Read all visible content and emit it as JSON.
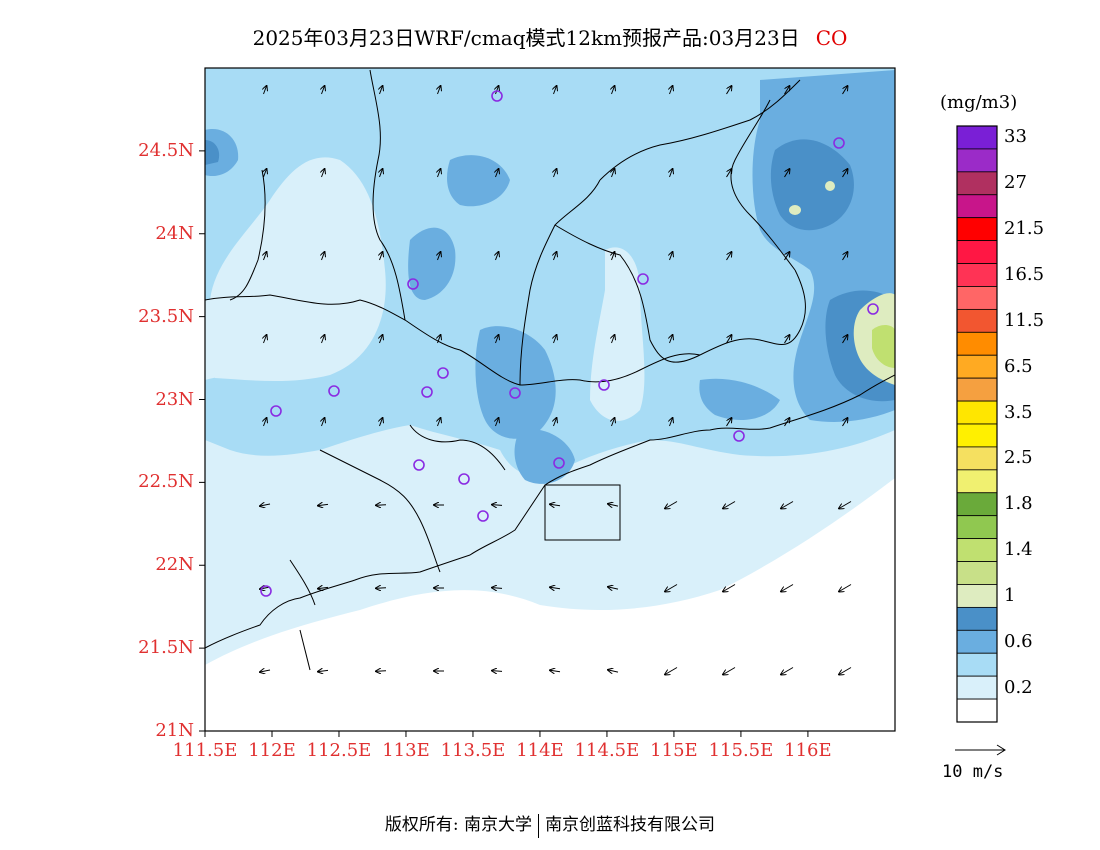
{
  "title": {
    "text": "2025年03月23日WRF/cmaq模式12km预报产品:03月23日",
    "pollutant": "CO"
  },
  "axes": {
    "lat_labels": [
      "24.5N",
      "24N",
      "23.5N",
      "23N",
      "22.5N",
      "22N",
      "21.5N",
      "21N"
    ],
    "lat_values": [
      24.5,
      24.0,
      23.5,
      23.0,
      22.5,
      22.0,
      21.5,
      21.0
    ],
    "lon_labels": [
      "111.5E",
      "112E",
      "112.5E",
      "113E",
      "113.5E",
      "114E",
      "114.5E",
      "115E",
      "115.5E",
      "116E"
    ],
    "lon_values": [
      111.5,
      112.0,
      112.5,
      113.0,
      113.5,
      114.0,
      114.5,
      115.0,
      115.5,
      116.0
    ],
    "lon_range": [
      111.5,
      116.65
    ],
    "lat_range": [
      21.0,
      25.0
    ]
  },
  "colorbar": {
    "unit": "(mg/m3)",
    "levels": [
      {
        "label": "33",
        "color": "#7a1fd6"
      },
      {
        "label": "",
        "color": "#9b2bc8"
      },
      {
        "label": "27",
        "color": "#b03060"
      },
      {
        "label": "",
        "color": "#c8158a"
      },
      {
        "label": "21.5",
        "color": "#ff0000"
      },
      {
        "label": "",
        "color": "#ff1744"
      },
      {
        "label": "16.5",
        "color": "#ff3355"
      },
      {
        "label": "",
        "color": "#ff6666"
      },
      {
        "label": "11.5",
        "color": "#f25630"
      },
      {
        "label": "",
        "color": "#ff8c00"
      },
      {
        "label": "6.5",
        "color": "#ffaa22"
      },
      {
        "label": "",
        "color": "#f5a040"
      },
      {
        "label": "3.5",
        "color": "#ffe600"
      },
      {
        "label": "",
        "color": "#fff000"
      },
      {
        "label": "2.5",
        "color": "#f5e060"
      },
      {
        "label": "",
        "color": "#f0f070"
      },
      {
        "label": "1.8",
        "color": "#6aaa3a"
      },
      {
        "label": "",
        "color": "#90c850"
      },
      {
        "label": "1.4",
        "color": "#c0e070"
      },
      {
        "label": "",
        "color": "#c8e088"
      },
      {
        "label": "1",
        "color": "#deecc0"
      },
      {
        "label": "",
        "color": "#4a90c8"
      },
      {
        "label": "0.6",
        "color": "#6aaee0"
      },
      {
        "label": "",
        "color": "#a8dcf5"
      },
      {
        "label": "0.2",
        "color": "#d9f0fa"
      },
      {
        "label": "",
        "color": "#ffffff"
      }
    ]
  },
  "wind_reference": {
    "label": "10 m/s"
  },
  "stations_count_note": "",
  "copyright": {
    "left": "版权所有: 南京大学",
    "right": "南京创蓝科技有限公司"
  }
}
